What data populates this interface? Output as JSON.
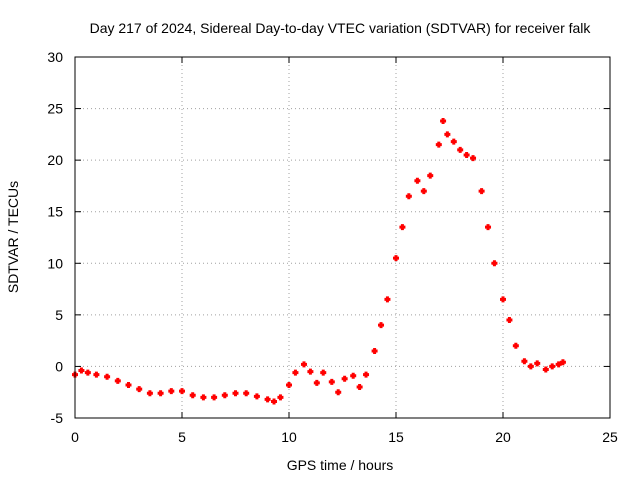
{
  "chart_data": {
    "type": "scatter",
    "title": "Day 217 of 2024, Sidereal Day-to-day VTEC variation (SDTVAR) for receiver falk",
    "xlabel": "GPS time / hours",
    "ylabel": "SDTVAR / TECUs",
    "xlim": [
      0,
      25
    ],
    "ylim": [
      -5,
      30
    ],
    "x_ticks": [
      0,
      5,
      10,
      15,
      20,
      25
    ],
    "y_ticks": [
      -5,
      0,
      5,
      10,
      15,
      20,
      25,
      30
    ],
    "grid": true,
    "marker": "+",
    "color": "#ff0000",
    "series": [
      {
        "name": "SDTVAR",
        "x": [
          0.0,
          0.3,
          0.6,
          1.0,
          1.5,
          2.0,
          2.5,
          3.0,
          3.5,
          4.0,
          4.5,
          5.0,
          5.5,
          6.0,
          6.5,
          7.0,
          7.5,
          8.0,
          8.5,
          9.0,
          9.3,
          9.6,
          10.0,
          10.3,
          10.7,
          11.0,
          11.3,
          11.6,
          12.0,
          12.3,
          12.6,
          13.0,
          13.3,
          13.6,
          14.0,
          14.3,
          14.6,
          15.0,
          15.3,
          15.6,
          16.0,
          16.3,
          16.6,
          17.0,
          17.2,
          17.4,
          17.7,
          18.0,
          18.3,
          18.6,
          19.0,
          19.3,
          19.6,
          20.0,
          20.3,
          20.6,
          21.0,
          21.3,
          21.6,
          22.0,
          22.3,
          22.6,
          22.8
        ],
        "y": [
          -0.8,
          -0.4,
          -0.6,
          -0.8,
          -1.0,
          -1.4,
          -1.8,
          -2.2,
          -2.6,
          -2.6,
          -2.4,
          -2.4,
          -2.8,
          -3.0,
          -3.0,
          -2.8,
          -2.6,
          -2.6,
          -2.9,
          -3.2,
          -3.4,
          -3.0,
          -1.8,
          -0.6,
          0.2,
          -0.5,
          -1.6,
          -0.6,
          -1.5,
          -2.5,
          -1.2,
          -0.9,
          -2.0,
          -0.8,
          1.5,
          4.0,
          6.5,
          10.5,
          13.5,
          16.5,
          18.0,
          17.0,
          18.5,
          21.5,
          23.8,
          22.5,
          21.8,
          21.0,
          20.5,
          20.2,
          17.0,
          13.5,
          10.0,
          6.5,
          4.5,
          2.0,
          0.5,
          0.0,
          0.3,
          -0.3,
          0.0,
          0.2,
          0.4
        ]
      }
    ]
  }
}
